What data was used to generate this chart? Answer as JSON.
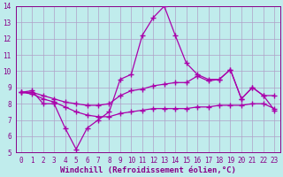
{
  "xlabel": "Windchill (Refroidissement éolien,°C)",
  "ylabel": "",
  "xlim": [
    -0.5,
    23.5
  ],
  "ylim": [
    5,
    14
  ],
  "xticks": [
    0,
    1,
    2,
    3,
    4,
    5,
    6,
    7,
    8,
    9,
    10,
    11,
    12,
    13,
    14,
    15,
    16,
    17,
    18,
    19,
    20,
    21,
    22,
    23
  ],
  "yticks": [
    5,
    6,
    7,
    8,
    9,
    10,
    11,
    12,
    13,
    14
  ],
  "background_color": "#c0ecec",
  "grid_color": "#b0a0c8",
  "line_color": "#aa00aa",
  "line1_x": [
    0,
    1,
    2,
    3,
    4,
    5,
    6,
    7,
    8,
    9,
    10,
    11,
    12,
    13,
    14,
    15,
    16,
    17,
    18,
    19,
    20,
    21,
    22,
    23
  ],
  "line1_y": [
    8.7,
    8.8,
    8.0,
    8.0,
    6.5,
    5.2,
    6.5,
    7.0,
    7.5,
    9.5,
    9.8,
    12.2,
    13.3,
    14.0,
    12.2,
    10.5,
    9.8,
    9.5,
    9.5,
    10.1,
    8.3,
    9.0,
    8.5,
    7.6
  ],
  "line2_x": [
    0,
    1,
    2,
    3,
    4,
    5,
    6,
    7,
    8,
    9,
    10,
    11,
    12,
    13,
    14,
    15,
    16,
    17,
    18,
    19,
    20,
    21,
    22,
    23
  ],
  "line2_y": [
    8.7,
    8.7,
    8.5,
    8.3,
    8.1,
    8.0,
    7.9,
    7.9,
    8.0,
    8.5,
    8.8,
    8.9,
    9.1,
    9.2,
    9.3,
    9.3,
    9.7,
    9.4,
    9.5,
    10.1,
    8.3,
    9.0,
    8.5,
    8.5
  ],
  "line3_x": [
    0,
    1,
    2,
    3,
    4,
    5,
    6,
    7,
    8,
    9,
    10,
    11,
    12,
    13,
    14,
    15,
    16,
    17,
    18,
    19,
    20,
    21,
    22,
    23
  ],
  "line3_y": [
    8.7,
    8.6,
    8.3,
    8.1,
    7.8,
    7.5,
    7.3,
    7.2,
    7.2,
    7.4,
    7.5,
    7.6,
    7.7,
    7.7,
    7.7,
    7.7,
    7.8,
    7.8,
    7.9,
    7.9,
    7.9,
    8.0,
    8.0,
    7.7
  ],
  "marker": "+",
  "markersize": 4,
  "linewidth": 0.9,
  "tick_fontsize": 5.5,
  "xlabel_fontsize": 6.5
}
